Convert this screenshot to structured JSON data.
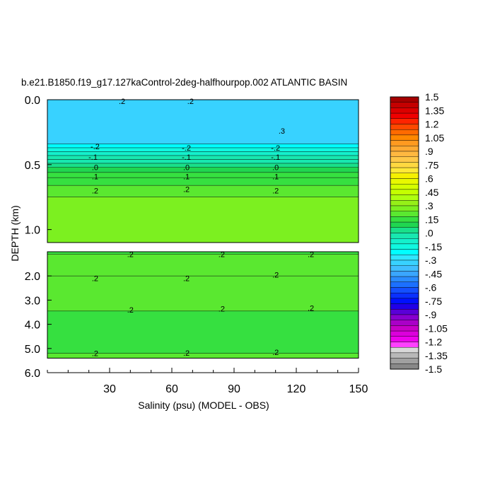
{
  "chart_data": {
    "type": "heatmap",
    "title": "b.e21.B1850.f19_g17.127kaControl-2deg-halfhourpop.002 ATLANTIC BASIN",
    "xlabel": "Salinity (psu) (MODEL - OBS)",
    "ylabel": "DEPTH (km)",
    "x_ticks": [
      "30",
      "60",
      "90",
      "120",
      "150"
    ],
    "x_tick_values": [
      30,
      60,
      90,
      120,
      150
    ],
    "xlim": [
      0,
      150
    ],
    "upper_panel": {
      "ylim": [
        0.0,
        1.1
      ],
      "y_ticks": [
        "0.0",
        "0.5",
        "1.0"
      ],
      "y_tick_values": [
        0.0,
        0.5,
        1.0
      ],
      "layers": [
        {
          "top": 0.0,
          "bottom": 0.34,
          "value": -0.3
        },
        {
          "top": 0.34,
          "bottom": 0.37,
          "value": -0.2
        },
        {
          "top": 0.37,
          "bottom": 0.4,
          "value": -0.15
        },
        {
          "top": 0.4,
          "bottom": 0.43,
          "value": -0.1
        },
        {
          "top": 0.43,
          "bottom": 0.46,
          "value": -0.05
        },
        {
          "top": 0.46,
          "bottom": 0.49,
          "value": 0.0
        },
        {
          "top": 0.49,
          "bottom": 0.52,
          "value": 0.05
        },
        {
          "top": 0.52,
          "bottom": 0.56,
          "value": 0.1
        },
        {
          "top": 0.56,
          "bottom": 0.6,
          "value": 0.125
        },
        {
          "top": 0.6,
          "bottom": 0.66,
          "value": 0.15
        },
        {
          "top": 0.66,
          "bottom": 0.75,
          "value": 0.2
        },
        {
          "top": 0.75,
          "bottom": 1.1,
          "value": 0.25
        }
      ],
      "contour_labels": [
        {
          "text": ".2",
          "x": 36,
          "depth": 0.01
        },
        {
          "text": ".2",
          "x": 69,
          "depth": 0.01
        },
        {
          "text": ".3",
          "x": 113,
          "depth": 0.24
        },
        {
          "text": "-.2",
          "x": 23,
          "depth": 0.36
        },
        {
          "text": "-.2",
          "x": 67,
          "depth": 0.37
        },
        {
          "text": "-.2",
          "x": 110,
          "depth": 0.37
        },
        {
          "text": "-.1",
          "x": 22,
          "depth": 0.44
        },
        {
          "text": "-.1",
          "x": 67,
          "depth": 0.44
        },
        {
          "text": "-.1",
          "x": 110,
          "depth": 0.44
        },
        {
          "text": ".0",
          "x": 23,
          "depth": 0.52
        },
        {
          "text": ".0",
          "x": 67,
          "depth": 0.52
        },
        {
          "text": ".0",
          "x": 110,
          "depth": 0.52
        },
        {
          "text": ".1",
          "x": 23,
          "depth": 0.59
        },
        {
          "text": ".1",
          "x": 67,
          "depth": 0.59
        },
        {
          "text": ".1",
          "x": 110,
          "depth": 0.59
        },
        {
          "text": ".2",
          "x": 23,
          "depth": 0.7
        },
        {
          "text": ".2",
          "x": 67,
          "depth": 0.69
        },
        {
          "text": ".2",
          "x": 110,
          "depth": 0.7
        }
      ]
    },
    "lower_panel": {
      "ylim": [
        1.0,
        6.0
      ],
      "y_ticks": [
        "2.0",
        "3.0",
        "4.0",
        "5.0",
        "6.0"
      ],
      "y_tick_values": [
        2.0,
        3.0,
        4.0,
        5.0,
        6.0
      ],
      "layers": [
        {
          "top": 1.0,
          "bottom": 1.1,
          "value": 0.15
        },
        {
          "top": 1.1,
          "bottom": 2.0,
          "value": 0.2
        },
        {
          "top": 2.0,
          "bottom": 3.45,
          "value": 0.2
        },
        {
          "top": 3.45,
          "bottom": 5.2,
          "value": 0.15
        },
        {
          "top": 5.2,
          "bottom": 5.4,
          "value": 0.2
        }
      ],
      "contour_labels": [
        {
          "text": ".2",
          "x": 40,
          "depth": 1.1
        },
        {
          "text": ".2",
          "x": 84,
          "depth": 1.1
        },
        {
          "text": ".2",
          "x": 127,
          "depth": 1.1
        },
        {
          "text": ".2",
          "x": 23,
          "depth": 2.1
        },
        {
          "text": ".2",
          "x": 67,
          "depth": 2.1
        },
        {
          "text": ".2",
          "x": 110,
          "depth": 1.95
        },
        {
          "text": ".2",
          "x": 40,
          "depth": 3.4
        },
        {
          "text": ".2",
          "x": 84,
          "depth": 3.35
        },
        {
          "text": ".2",
          "x": 127,
          "depth": 3.33
        },
        {
          "text": ".2",
          "x": 23,
          "depth": 5.2
        },
        {
          "text": ".2",
          "x": 67,
          "depth": 5.18
        },
        {
          "text": ".2",
          "x": 110,
          "depth": 5.15
        }
      ]
    },
    "colorbar": {
      "labels": [
        "1.5",
        "1.35",
        "1.2",
        "1.05",
        ".9",
        ".75",
        ".6",
        ".45",
        ".3",
        ".15",
        ".0",
        "-.15",
        "-.3",
        "-.45",
        "-.6",
        "-.75",
        "-.9",
        "-1.05",
        "-1.2",
        "-1.35",
        "-1.5"
      ],
      "colors": [
        "#a50000",
        "#c40000",
        "#dc0000",
        "#f00000",
        "#ff2400",
        "#ff4800",
        "#ff6a00",
        "#ff8800",
        "#ff9a20",
        "#ffaa33",
        "#ffb840",
        "#ffc848",
        "#ffd840",
        "#ffe838",
        "#f6f000",
        "#e8f800",
        "#d4ff00",
        "#c4ff00",
        "#aeff10",
        "#96f018",
        "#7cf020",
        "#5ae830",
        "#36e040",
        "#20d650",
        "#19e08a",
        "#18e8b0",
        "#14f0cc",
        "#10f8e0",
        "#00ffff",
        "#30e6ff",
        "#38d2ff",
        "#40beff",
        "#3aa6ff",
        "#2a8cff",
        "#1c70ff",
        "#1450ff",
        "#0a30ff",
        "#0010ff",
        "#2000e8",
        "#5a00d8",
        "#8800d0",
        "#aa00c8",
        "#c800c8",
        "#dc00dc",
        "#ee00ee",
        "#ff40ff",
        "#d8d8d8",
        "#b8b8b8",
        "#a0a0a0",
        "#888888"
      ]
    }
  }
}
